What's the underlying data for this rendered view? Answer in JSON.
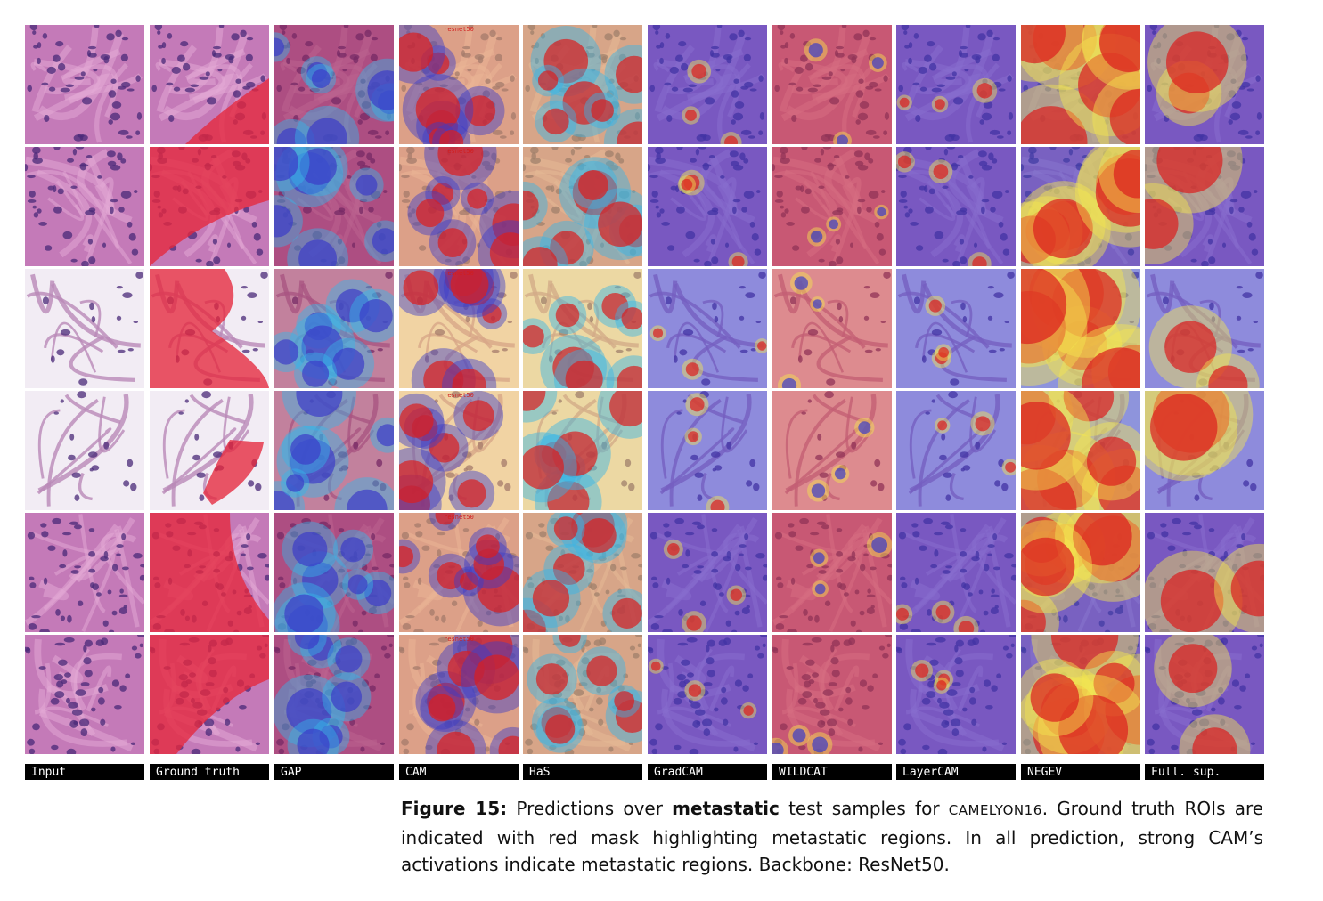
{
  "columns": [
    "Input",
    "Ground truth",
    "GAP",
    "CAM",
    "HaS",
    "GradCAM",
    "WILDCAT",
    "LayerCAM",
    "NEGEV",
    "Full. sup."
  ],
  "overlay_tag": "resnet50",
  "caption": {
    "figure_label": "Figure 15:",
    "text_before_bold": "Predictions over",
    "bold_term": "metastatic",
    "text_after_bold": "test samples for",
    "dataset": "CAMELYON16",
    "text_rest": ". Ground truth ROIs are indicated with red mask highlighting metastatic regions. In all prediction, strong CAM’s activations indicate metastatic regions. Backbone: ResNet50."
  },
  "colors": {
    "tissue_pink": "#c47ab8",
    "nuclei_purple": "#4a2a78",
    "mask_red": "#e6283c",
    "cam_blue": "#3c3cc8",
    "cam_red": "#dc1e1e",
    "cam_yellow": "#f5e650",
    "label_bg": "#000000"
  }
}
